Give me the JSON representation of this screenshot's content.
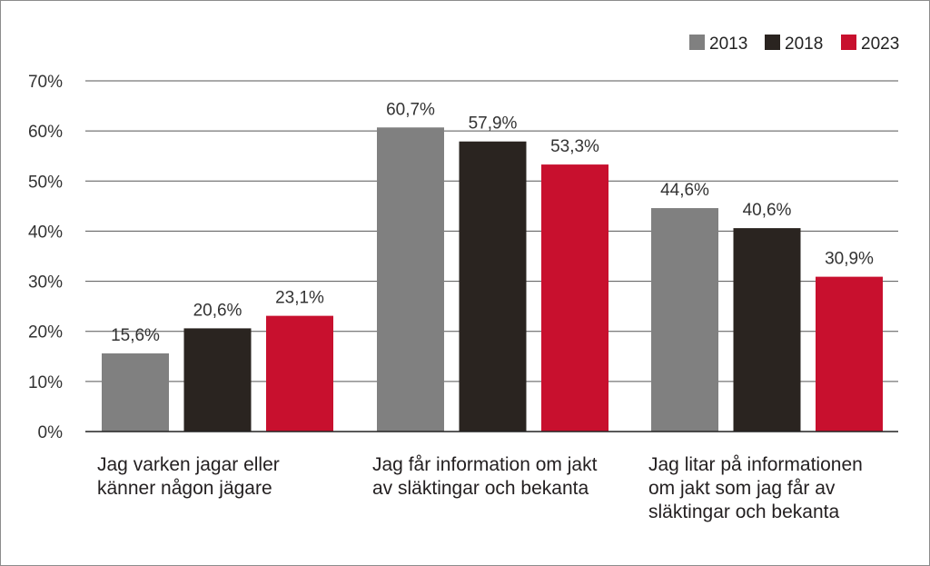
{
  "chart_data": {
    "type": "bar",
    "categories": [
      [
        "Jag varken jagar eller",
        "känner någon jägare"
      ],
      [
        "Jag får information om jakt",
        "av släktingar och bekanta"
      ],
      [
        "Jag litar på informationen",
        "om jakt som jag får av",
        "släktingar och bekanta"
      ]
    ],
    "series": [
      {
        "name": "2013",
        "color": "#808080",
        "values": [
          15.6,
          60.7,
          44.6
        ],
        "labels": [
          "15,6%",
          "60,7%",
          "44,6%"
        ]
      },
      {
        "name": "2018",
        "color": "#2a2420",
        "values": [
          20.6,
          57.9,
          40.6
        ],
        "labels": [
          "20,6%",
          "57,9%",
          "40,6%"
        ]
      },
      {
        "name": "2023",
        "color": "#c8102e",
        "values": [
          23.1,
          53.3,
          30.9
        ],
        "labels": [
          "23,1%",
          "53,3%",
          "30,9%"
        ]
      }
    ],
    "yticks": [
      "0%",
      "10%",
      "20%",
      "30%",
      "40%",
      "50%",
      "60%",
      "70%"
    ],
    "ylim": [
      0,
      70
    ],
    "grid": true,
    "legend_position": "top-right"
  }
}
